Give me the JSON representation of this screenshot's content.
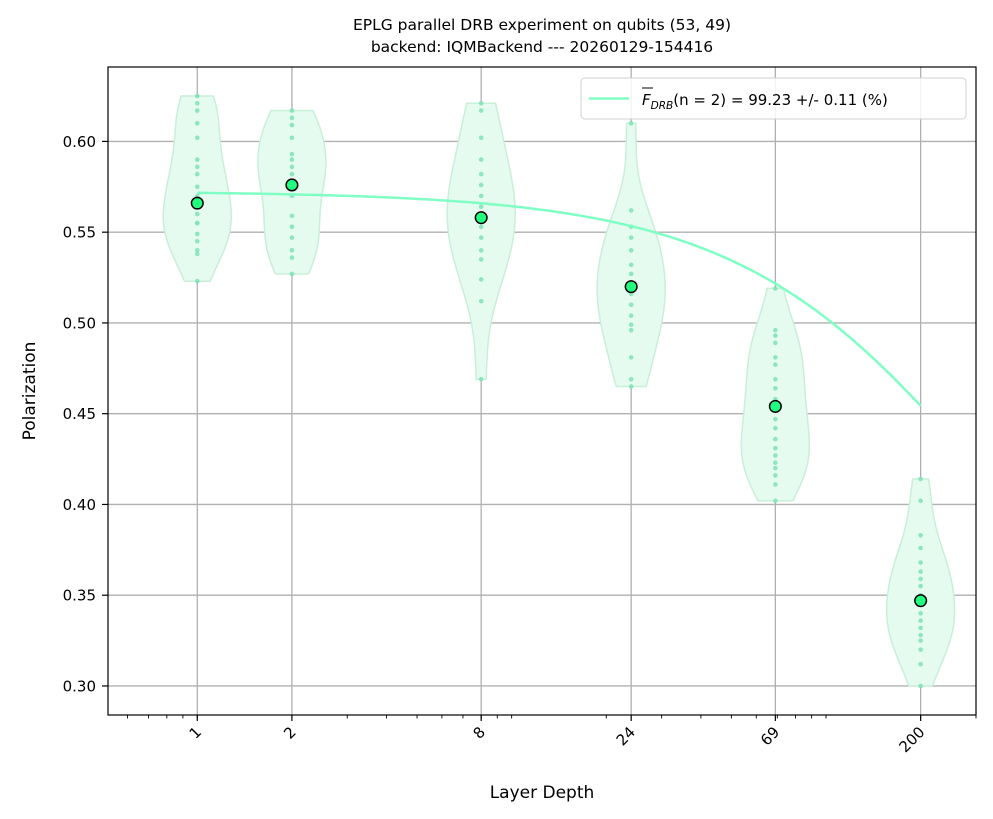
{
  "chart_data": {
    "type": "violin",
    "title": "EPLG parallel DRB experiment on qubits (53, 49)",
    "subtitle": "backend: IQMBackend --- 20260129-154416",
    "xlabel": "Layer Depth",
    "ylabel": "Polarization",
    "xscale": "log",
    "xlim": [
      0.52,
      300
    ],
    "ylim": [
      0.284,
      0.641
    ],
    "x_ticks": [
      1,
      2,
      8,
      24,
      69,
      200
    ],
    "x_tick_labels": [
      "1",
      "2",
      "8",
      "24",
      "69",
      "200"
    ],
    "y_ticks": [
      0.3,
      0.35,
      0.4,
      0.45,
      0.5,
      0.55,
      0.6
    ],
    "y_tick_labels": [
      "0.30",
      "0.35",
      "0.40",
      "0.45",
      "0.50",
      "0.55",
      "0.60"
    ],
    "grid": true,
    "legend_position": "top-right",
    "legend": {
      "label_prefix": "F",
      "label_sub": "DRB",
      "label_suffix": "(n = 2) = 99.23 +/- 0.11 (%)"
    },
    "colors": {
      "fit": "#7fffc4",
      "mean_fill": "#20ff80",
      "mean_edge": "#000000",
      "violin_fill": "#e6fbef",
      "violin_edge": "#c8efd8",
      "samples": "#7de2b4",
      "grid": "#b0b0b0"
    },
    "fit_curve": {
      "model": "A*p^x + B",
      "A": 0.2274,
      "p": 0.99634,
      "B": 0.3451,
      "x_range": [
        1,
        200
      ]
    },
    "series": [
      {
        "depth": 1,
        "mean": 0.566,
        "range": [
          0.523,
          0.625
        ],
        "samples": [
          0.625,
          0.621,
          0.617,
          0.61,
          0.602,
          0.59,
          0.586,
          0.582,
          0.575,
          0.57,
          0.566,
          0.56,
          0.555,
          0.555,
          0.549,
          0.545,
          0.54,
          0.538,
          0.523
        ]
      },
      {
        "depth": 2,
        "mean": 0.576,
        "range": [
          0.527,
          0.617
        ],
        "samples": [
          0.617,
          0.613,
          0.609,
          0.602,
          0.593,
          0.59,
          0.586,
          0.582,
          0.576,
          0.57,
          0.559,
          0.553,
          0.547,
          0.54,
          0.536,
          0.527
        ]
      },
      {
        "depth": 8,
        "mean": 0.558,
        "range": [
          0.469,
          0.621
        ],
        "samples": [
          0.621,
          0.617,
          0.602,
          0.59,
          0.582,
          0.576,
          0.57,
          0.564,
          0.558,
          0.553,
          0.547,
          0.54,
          0.535,
          0.524,
          0.512,
          0.469
        ]
      },
      {
        "depth": 24,
        "mean": 0.52,
        "range": [
          0.465,
          0.61
        ],
        "samples": [
          0.61,
          0.562,
          0.553,
          0.547,
          0.54,
          0.532,
          0.527,
          0.522,
          0.516,
          0.51,
          0.504,
          0.499,
          0.496,
          0.481,
          0.469,
          0.465
        ]
      },
      {
        "depth": 69,
        "mean": 0.454,
        "range": [
          0.402,
          0.519
        ],
        "samples": [
          0.519,
          0.496,
          0.493,
          0.489,
          0.481,
          0.477,
          0.469,
          0.464,
          0.458,
          0.452,
          0.447,
          0.442,
          0.436,
          0.431,
          0.427,
          0.423,
          0.42,
          0.416,
          0.411,
          0.402
        ]
      },
      {
        "depth": 200,
        "mean": 0.347,
        "range": [
          0.3,
          0.414
        ],
        "samples": [
          0.414,
          0.402,
          0.383,
          0.376,
          0.368,
          0.363,
          0.359,
          0.355,
          0.35,
          0.345,
          0.34,
          0.336,
          0.332,
          0.328,
          0.325,
          0.32,
          0.312,
          0.3
        ]
      }
    ]
  }
}
